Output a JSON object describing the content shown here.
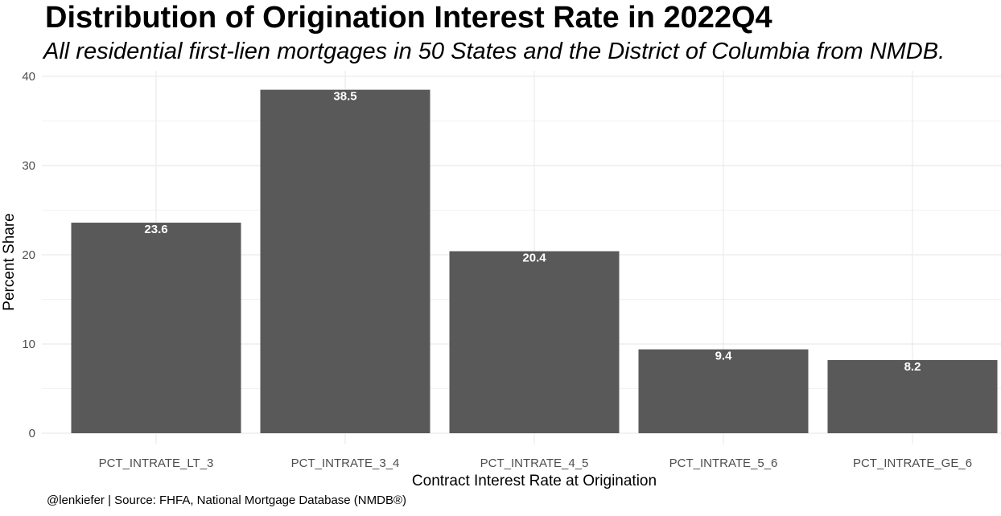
{
  "chart_data": {
    "type": "bar",
    "title": "Distribution of Origination Interest Rate in 2022Q4",
    "subtitle": "All residential first-lien mortgages in 50 States and the District of Columbia from NMDB.",
    "xlabel": "Contract Interest Rate at Origination",
    "ylabel": "Percent Share",
    "caption": "@lenkiefer | Source: FHFA, National Mortgage Database (NMDB®)",
    "categories": [
      "PCT_INTRATE_LT_3",
      "PCT_INTRATE_3_4",
      "PCT_INTRATE_4_5",
      "PCT_INTRATE_5_6",
      "PCT_INTRATE_GE_6"
    ],
    "values": [
      23.6,
      38.5,
      20.4,
      9.4,
      8.2
    ],
    "data_labels": [
      "23.6",
      "38.5",
      "20.4",
      "9.4",
      "8.2"
    ],
    "ylim": [
      0,
      40
    ],
    "yticks": [
      0,
      10,
      20,
      30,
      40
    ],
    "ytick_labels": [
      "0",
      "10",
      "20",
      "30",
      "40"
    ],
    "grid": true,
    "legend": "none",
    "bar_color": "#595959",
    "label_color": "#ffffff"
  }
}
